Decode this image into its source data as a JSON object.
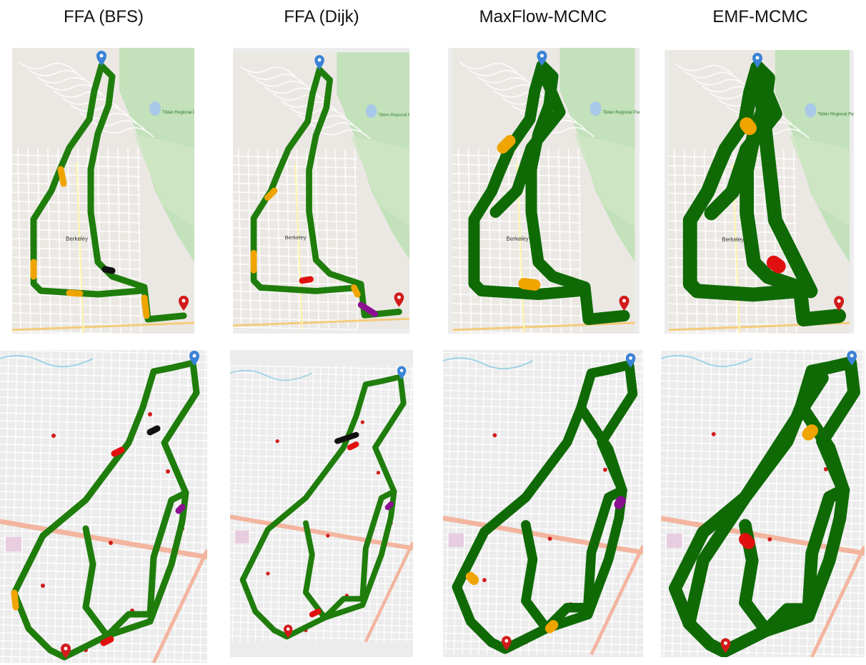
{
  "figure": {
    "columns": [
      {
        "title": "FFA (BFS)"
      },
      {
        "title": "FFA (Dijk)"
      },
      {
        "title": "MaxFlow-MCMC"
      },
      {
        "title": "EMF-MCMC"
      }
    ],
    "rows": [
      {
        "name": "berkeley",
        "map_labels": [
          "Berkeley",
          "Tilden Regional Park"
        ]
      },
      {
        "name": "grid-city",
        "map_labels": []
      }
    ],
    "colors": {
      "route_green": "#1f7d0c",
      "route_dark_green": "#0f6a06",
      "route_orange": "#f0a400",
      "route_red": "#e01010",
      "route_black": "#111111",
      "route_purple": "#8a1090",
      "start_marker": "#3a83d6",
      "end_marker": "#d21b1b",
      "park_green": "#b9deb0",
      "road_orange": "#f3b59f"
    },
    "markers": {
      "start": "start-pin-icon",
      "end": "end-pin-icon"
    }
  }
}
